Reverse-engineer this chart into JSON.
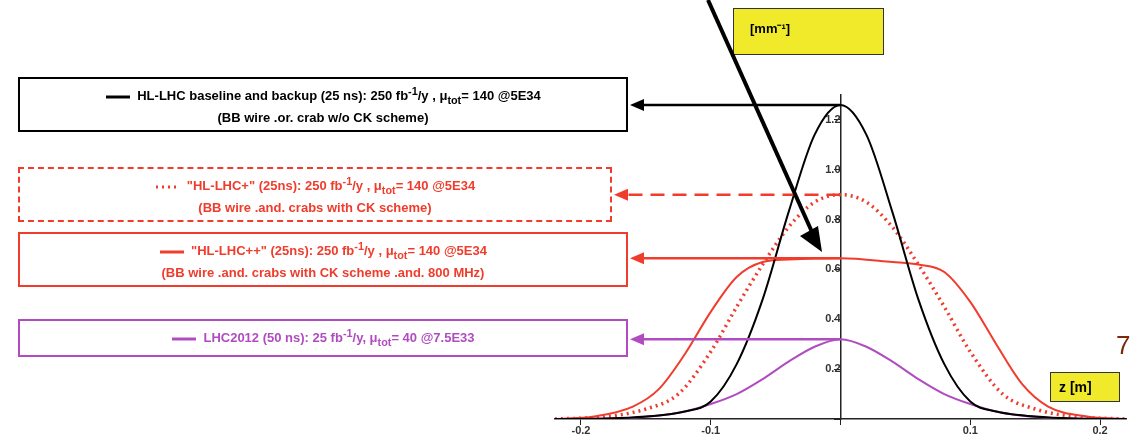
{
  "chart_data": {
    "type": "line",
    "xlabel": "z [m]",
    "ylabel": "[mm⁻¹]",
    "xlim": [
      -0.22,
      0.22
    ],
    "ylim": [
      0,
      1.3
    ],
    "xticks": [
      -0.2,
      -0.1,
      {
        "value": 0,
        "label": null
      },
      0.1,
      0.2
    ],
    "yticks": [
      {
        "value": 0,
        "label": null
      },
      0.2,
      0.4,
      0.6,
      0.8,
      {
        "value": 1,
        "label": "1.0"
      },
      1.2
    ],
    "legend": "left",
    "grid": false,
    "marker": "none",
    "annotations": [
      "7"
    ],
    "series": [
      {
        "name": "HL-LHC baseline and backup (25 ns): 250 fb$^{-1}$/y , μ$_{tot}$= 140 @5E34\n(BB wire .or. crab w/o CK scheme)",
        "color": "#000000",
        "line_style": "solid",
        "x": [
          -0.22,
          -0.18,
          -0.15,
          -0.12,
          -0.1,
          -0.08,
          -0.06,
          -0.04,
          -0.02,
          0,
          0.02,
          0.04,
          0.06,
          0.08,
          0.1,
          0.12,
          0.15,
          0.18,
          0.22
        ],
        "values": [
          0,
          0.002,
          0.01,
          0.03,
          0.07,
          0.22,
          0.48,
          0.83,
          1.14,
          1.26,
          1.14,
          0.83,
          0.48,
          0.22,
          0.07,
          0.03,
          0.01,
          0.002,
          0
        ]
      },
      {
        "name": "\"HL-LHC+\" (25ns): 250 fb$^{-1}$/y , μ$_{tot}$= 140 @5E34\n(BB wire .and. crabs with CK scheme)",
        "color": "#f03c2c",
        "line_style": "dotted",
        "x": [
          -0.22,
          -0.18,
          -0.15,
          -0.125,
          -0.1,
          -0.08,
          -0.06,
          -0.04,
          -0.02,
          0,
          0.02,
          0.04,
          0.06,
          0.08,
          0.1,
          0.125,
          0.15,
          0.18,
          0.22
        ],
        "values": [
          0,
          0.01,
          0.04,
          0.1,
          0.27,
          0.45,
          0.62,
          0.77,
          0.87,
          0.9,
          0.87,
          0.77,
          0.62,
          0.45,
          0.27,
          0.1,
          0.04,
          0.01,
          0
        ]
      },
      {
        "name": "\"HL-LHC++\" (25ns): 250 fb$^{-1}$/y , μ$_{tot}$= 140 @5E34\n(BB wire .and. crabs with CK scheme .and. 800 MHz)",
        "color": "#f03c2c",
        "line_style": "solid",
        "x": [
          -0.22,
          -0.19,
          -0.16,
          -0.14,
          -0.12,
          -0.1,
          -0.08,
          -0.06,
          -0.04,
          0,
          0.04,
          0.06,
          0.08,
          0.1,
          0.12,
          0.14,
          0.16,
          0.19,
          0.22
        ],
        "values": [
          0,
          0.01,
          0.05,
          0.12,
          0.26,
          0.43,
          0.57,
          0.63,
          0.64,
          0.645,
          0.63,
          0.62,
          0.59,
          0.47,
          0.3,
          0.14,
          0.05,
          0.01,
          0
        ]
      },
      {
        "name": "LHC2012 (50 ns):  25 fb$^{-1}$/y, μ$_{tot}$= 40 @7.5E33",
        "color": "#b04cc0",
        "line_style": "solid",
        "x": [
          -0.22,
          -0.16,
          -0.12,
          -0.1,
          -0.08,
          -0.06,
          -0.04,
          -0.02,
          0,
          0.02,
          0.04,
          0.06,
          0.08,
          0.1,
          0.12,
          0.16,
          0.22
        ],
        "values": [
          0,
          0.005,
          0.03,
          0.06,
          0.1,
          0.16,
          0.23,
          0.29,
          0.32,
          0.29,
          0.23,
          0.16,
          0.1,
          0.06,
          0.03,
          0.005,
          0
        ]
      }
    ]
  }
}
